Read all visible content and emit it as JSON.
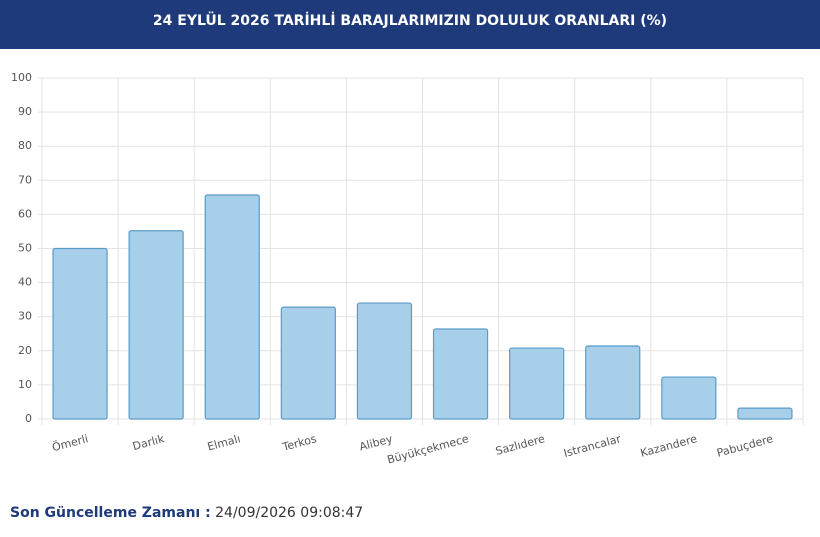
{
  "chart_data": {
    "type": "bar",
    "title": "24 EYLÜL 2026 TARİHLİ BARAJLARIMIZIN DOLULUK ORANLARI (%)",
    "categories": [
      "Ömerli",
      "Darlık",
      "Elmalı",
      "Terkos",
      "Alibey",
      "Büyükçekmece",
      "Sazlıdere",
      "Istrancalar",
      "Kazandere",
      "Pabuçdere"
    ],
    "values": [
      50,
      55.2,
      65.7,
      32.8,
      34,
      26.4,
      20.8,
      21.4,
      12.3,
      3.2
    ],
    "color": "#a8cfe9",
    "ylim": [
      0,
      100
    ],
    "yticks": [
      0,
      10,
      20,
      30,
      40,
      50,
      60,
      70,
      80,
      90,
      100
    ],
    "grid": true
  },
  "footer": {
    "label": "Son Güncelleme Zamanı :",
    "value": "24/09/2026 09:08:47"
  }
}
